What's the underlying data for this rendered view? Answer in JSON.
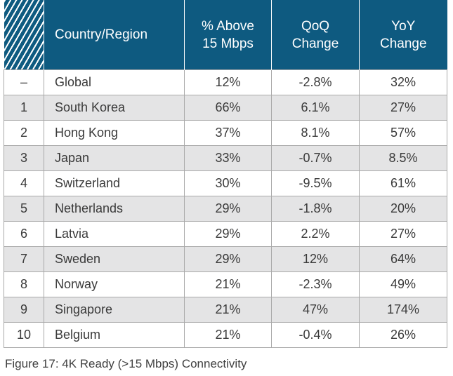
{
  "table": {
    "headers": {
      "rank": "",
      "country": "Country/Region",
      "pct_line1": "% Above",
      "pct_line2": "15 Mbps",
      "qoq_line1": "QoQ",
      "qoq_line2": "Change",
      "yoy_line1": "YoY",
      "yoy_line2": "Change"
    },
    "rows": [
      {
        "rank": "–",
        "country": "Global",
        "pct": "12%",
        "qoq": "-2.8%",
        "yoy": "32%"
      },
      {
        "rank": "1",
        "country": "South Korea",
        "pct": "66%",
        "qoq": "6.1%",
        "yoy": "27%"
      },
      {
        "rank": "2",
        "country": "Hong Kong",
        "pct": "37%",
        "qoq": "8.1%",
        "yoy": "57%"
      },
      {
        "rank": "3",
        "country": "Japan",
        "pct": "33%",
        "qoq": "-0.7%",
        "yoy": "8.5%"
      },
      {
        "rank": "4",
        "country": "Switzerland",
        "pct": "30%",
        "qoq": "-9.5%",
        "yoy": "61%"
      },
      {
        "rank": "5",
        "country": "Netherlands",
        "pct": "29%",
        "qoq": "-1.8%",
        "yoy": "20%"
      },
      {
        "rank": "6",
        "country": "Latvia",
        "pct": "29%",
        "qoq": "2.2%",
        "yoy": "27%"
      },
      {
        "rank": "7",
        "country": "Sweden",
        "pct": "29%",
        "qoq": "12%",
        "yoy": "64%"
      },
      {
        "rank": "8",
        "country": "Norway",
        "pct": "21%",
        "qoq": "-2.3%",
        "yoy": "49%"
      },
      {
        "rank": "9",
        "country": "Singapore",
        "pct": "21%",
        "qoq": "47%",
        "yoy": "174%"
      },
      {
        "rank": "10",
        "country": "Belgium",
        "pct": "21%",
        "qoq": "-0.4%",
        "yoy": "26%"
      }
    ]
  },
  "caption": "Figure 17: 4K Ready (>15 Mbps) Connectivity",
  "colors": {
    "header_bg": "#0e5a80",
    "shaded_row": "#e4e4e5",
    "border": "#a9a9a9"
  }
}
